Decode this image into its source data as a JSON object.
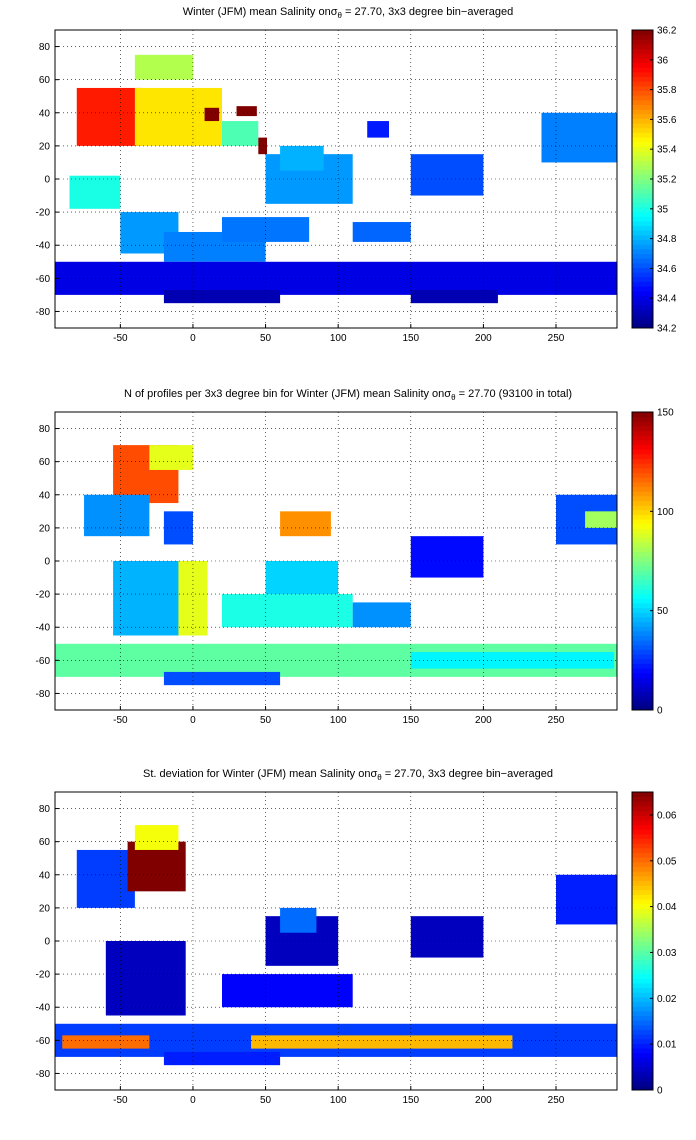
{
  "colormap": "jet",
  "chart_data": [
    {
      "type": "heatmap",
      "title_pre": "Winter (JFM) mean Salinity on",
      "title_sigma_base": "σ",
      "title_sigma_sub": "θ",
      "title_post": " = 27.70, 3x3 degree bin−averaged",
      "xlim": [
        -95,
        292
      ],
      "ylim": [
        -90,
        90
      ],
      "x_ticks": [
        -50,
        0,
        50,
        100,
        150,
        200,
        250
      ],
      "y_ticks": [
        -80,
        -60,
        -40,
        -20,
        0,
        20,
        40,
        60,
        80
      ],
      "grid": "dotted",
      "colorbar": {
        "min": 34.2,
        "max": 36.2,
        "ticks": [
          34.2,
          34.4,
          34.6,
          34.8,
          35,
          35.2,
          35.4,
          35.6,
          35.8,
          36,
          36.2
        ]
      },
      "cells": [
        [
          -80,
          20,
          45,
          35,
          35.9
        ],
        [
          -40,
          20,
          60,
          35,
          35.5
        ],
        [
          -85,
          -18,
          35,
          20,
          35.0
        ],
        [
          -50,
          -45,
          40,
          25,
          34.75
        ],
        [
          -20,
          -50,
          70,
          18,
          34.7
        ],
        [
          20,
          20,
          25,
          15,
          35.1
        ],
        [
          8,
          35,
          10,
          8,
          36.2
        ],
        [
          30,
          38,
          14,
          6,
          36.2
        ],
        [
          45,
          15,
          6,
          10,
          36.2
        ],
        [
          50,
          -15,
          60,
          30,
          34.75
        ],
        [
          60,
          5,
          30,
          15,
          34.8
        ],
        [
          20,
          -38,
          60,
          15,
          34.68
        ],
        [
          110,
          -38,
          40,
          12,
          34.65
        ],
        [
          -95,
          -70,
          387,
          20,
          34.4
        ],
        [
          -20,
          -75,
          80,
          8,
          34.3
        ],
        [
          150,
          -75,
          60,
          8,
          34.3
        ],
        [
          150,
          -10,
          50,
          25,
          34.6
        ],
        [
          240,
          10,
          52,
          30,
          34.7
        ],
        [
          120,
          25,
          15,
          10,
          34.5
        ],
        [
          -40,
          60,
          40,
          15,
          35.3
        ]
      ]
    },
    {
      "type": "heatmap",
      "title_pre": "N of profiles per 3x3 degree bin for Winter (JFM) mean Salinity on",
      "title_sigma_base": "σ",
      "title_sigma_sub": "θ",
      "title_post": " = 27.70 (93100 in total)",
      "xlim": [
        -95,
        292
      ],
      "ylim": [
        -90,
        90
      ],
      "x_ticks": [
        -50,
        0,
        50,
        100,
        150,
        200,
        250
      ],
      "y_ticks": [
        -80,
        -60,
        -40,
        -20,
        0,
        20,
        40,
        60,
        80
      ],
      "grid": "dotted",
      "colorbar": {
        "min": 0,
        "max": 150,
        "ticks": [
          0,
          50,
          100,
          150
        ]
      },
      "cells": [
        [
          -55,
          35,
          45,
          35,
          120
        ],
        [
          -30,
          55,
          30,
          15,
          90
        ],
        [
          -75,
          15,
          45,
          25,
          40
        ],
        [
          -55,
          -45,
          65,
          45,
          45
        ],
        [
          -10,
          -45,
          20,
          45,
          90
        ],
        [
          20,
          -40,
          90,
          20,
          60
        ],
        [
          50,
          -20,
          50,
          20,
          50
        ],
        [
          60,
          15,
          35,
          15,
          110
        ],
        [
          110,
          -40,
          40,
          15,
          40
        ],
        [
          -95,
          -70,
          387,
          20,
          70
        ],
        [
          150,
          -65,
          140,
          10,
          55
        ],
        [
          -20,
          -75,
          80,
          8,
          30
        ],
        [
          150,
          -10,
          50,
          25,
          20
        ],
        [
          250,
          10,
          42,
          30,
          30
        ],
        [
          270,
          20,
          22,
          10,
          80
        ],
        [
          -20,
          10,
          20,
          20,
          30
        ]
      ]
    },
    {
      "type": "heatmap",
      "title_pre": "St. deviation for Winter (JFM) mean Salinity on",
      "title_sigma_base": "σ",
      "title_sigma_sub": "θ",
      "title_post": " = 27.70, 3x3 degree bin−averaged",
      "xlim": [
        -95,
        292
      ],
      "ylim": [
        -90,
        90
      ],
      "x_ticks": [
        -50,
        0,
        50,
        100,
        150,
        200,
        250
      ],
      "y_ticks": [
        -80,
        -60,
        -40,
        -20,
        0,
        20,
        40,
        60,
        80
      ],
      "grid": "dotted",
      "colorbar": {
        "min": 0,
        "max": 0.065,
        "ticks": [
          0,
          0.01,
          0.02,
          0.03,
          0.04,
          0.05,
          0.06
        ]
      },
      "cells": [
        [
          -80,
          20,
          40,
          35,
          0.012
        ],
        [
          -45,
          30,
          40,
          30,
          0.065
        ],
        [
          -40,
          55,
          30,
          15,
          0.04
        ],
        [
          -60,
          -45,
          55,
          45,
          0.004
        ],
        [
          20,
          -40,
          90,
          20,
          0.008
        ],
        [
          50,
          -15,
          50,
          30,
          0.004
        ],
        [
          60,
          5,
          25,
          15,
          0.015
        ],
        [
          -95,
          -70,
          387,
          20,
          0.012
        ],
        [
          -90,
          -65,
          60,
          8,
          0.05
        ],
        [
          40,
          -65,
          180,
          8,
          0.045
        ],
        [
          150,
          -10,
          50,
          25,
          0.004
        ],
        [
          250,
          10,
          42,
          30,
          0.01
        ],
        [
          -20,
          -75,
          80,
          8,
          0.01
        ]
      ]
    }
  ]
}
